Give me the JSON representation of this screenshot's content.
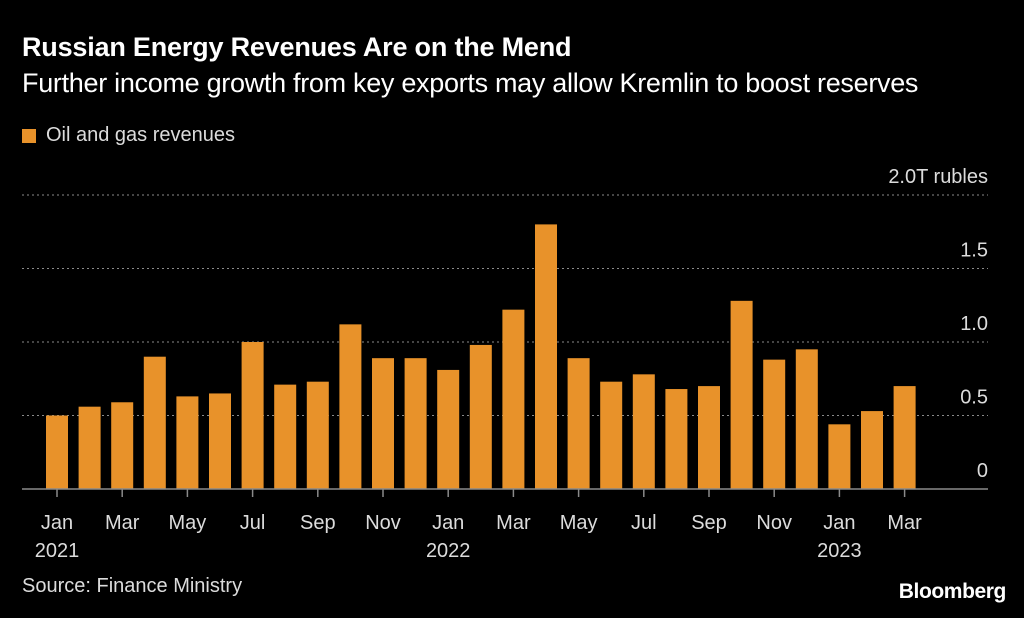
{
  "title": "Russian Energy Revenues Are on the Mend",
  "subtitle": "Further income growth from key exports may allow Kremlin to boost reserves",
  "legend_label": "Oil and gas revenues",
  "source": "Source: Finance Ministry",
  "logo": "Bloomberg",
  "colors": {
    "bar": "#e8922a",
    "background": "#000000",
    "grid": "#8a8a8a",
    "axis": "#8a8a8a",
    "text": "#dcdcdc"
  },
  "chart_data": {
    "type": "bar",
    "series": [
      {
        "name": "Oil and gas revenues",
        "x": [
          "2021-01",
          "2021-02",
          "2021-03",
          "2021-04",
          "2021-05",
          "2021-06",
          "2021-07",
          "2021-08",
          "2021-09",
          "2021-10",
          "2021-11",
          "2021-12",
          "2022-01",
          "2022-02",
          "2022-03",
          "2022-04",
          "2022-05",
          "2022-06",
          "2022-07",
          "2022-08",
          "2022-09",
          "2022-10",
          "2022-11",
          "2022-12",
          "2023-01",
          "2023-02",
          "2023-03"
        ],
        "values": [
          0.5,
          0.56,
          0.59,
          0.9,
          0.63,
          0.65,
          1.0,
          0.71,
          0.73,
          1.12,
          0.89,
          0.89,
          0.81,
          0.98,
          1.22,
          1.8,
          0.89,
          0.73,
          0.78,
          0.68,
          0.7,
          1.28,
          0.88,
          0.95,
          0.44,
          0.53,
          0.7
        ]
      }
    ],
    "ylim": [
      0,
      2.0
    ],
    "y_ticks": [
      {
        "value": 0,
        "label": "0"
      },
      {
        "value": 0.5,
        "label": "0.5"
      },
      {
        "value": 1.0,
        "label": "1.0"
      },
      {
        "value": 1.5,
        "label": "1.5"
      },
      {
        "value": 2.0,
        "label": "2.0T rubles"
      }
    ],
    "x_ticks": [
      {
        "x": "2021-01",
        "label": "Jan",
        "year": "2021"
      },
      {
        "x": "2021-03",
        "label": "Mar"
      },
      {
        "x": "2021-05",
        "label": "May"
      },
      {
        "x": "2021-07",
        "label": "Jul"
      },
      {
        "x": "2021-09",
        "label": "Sep"
      },
      {
        "x": "2021-11",
        "label": "Nov"
      },
      {
        "x": "2022-01",
        "label": "Jan",
        "year": "2022"
      },
      {
        "x": "2022-03",
        "label": "Mar"
      },
      {
        "x": "2022-05",
        "label": "May"
      },
      {
        "x": "2022-07",
        "label": "Jul"
      },
      {
        "x": "2022-09",
        "label": "Sep"
      },
      {
        "x": "2022-11",
        "label": "Nov"
      },
      {
        "x": "2023-01",
        "label": "Jan",
        "year": "2023"
      },
      {
        "x": "2023-03",
        "label": "Mar"
      }
    ],
    "grid": true,
    "legend_position": "top-left"
  }
}
